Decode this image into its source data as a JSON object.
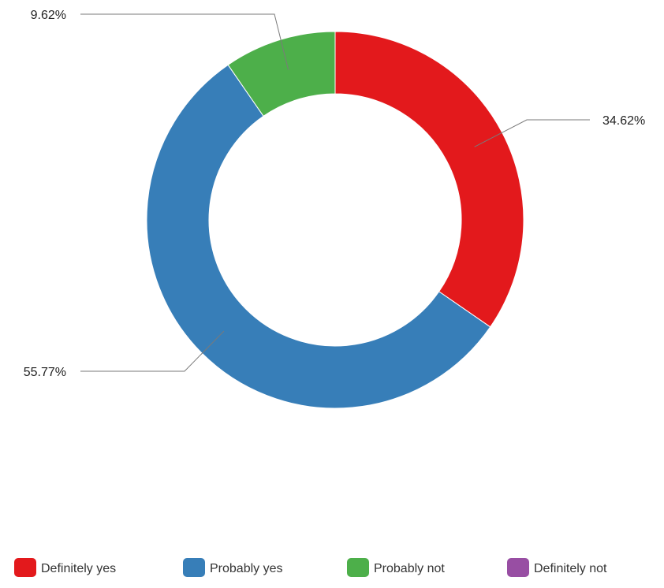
{
  "chart_data": {
    "type": "pie",
    "subtype": "donut",
    "title": "",
    "legend_position": "bottom",
    "slices": [
      {
        "label": "Definitely yes",
        "value": 34.62,
        "display": "34.62%",
        "color": "#e3191c"
      },
      {
        "label": "Probably yes",
        "value": 55.77,
        "display": "55.77%",
        "color": "#377eb8"
      },
      {
        "label": "Probably not",
        "value": 9.62,
        "display": "9.62%",
        "color": "#4daf4a"
      },
      {
        "label": "Definitely not",
        "value": 0,
        "display": "",
        "color": "#984ea3"
      }
    ]
  }
}
